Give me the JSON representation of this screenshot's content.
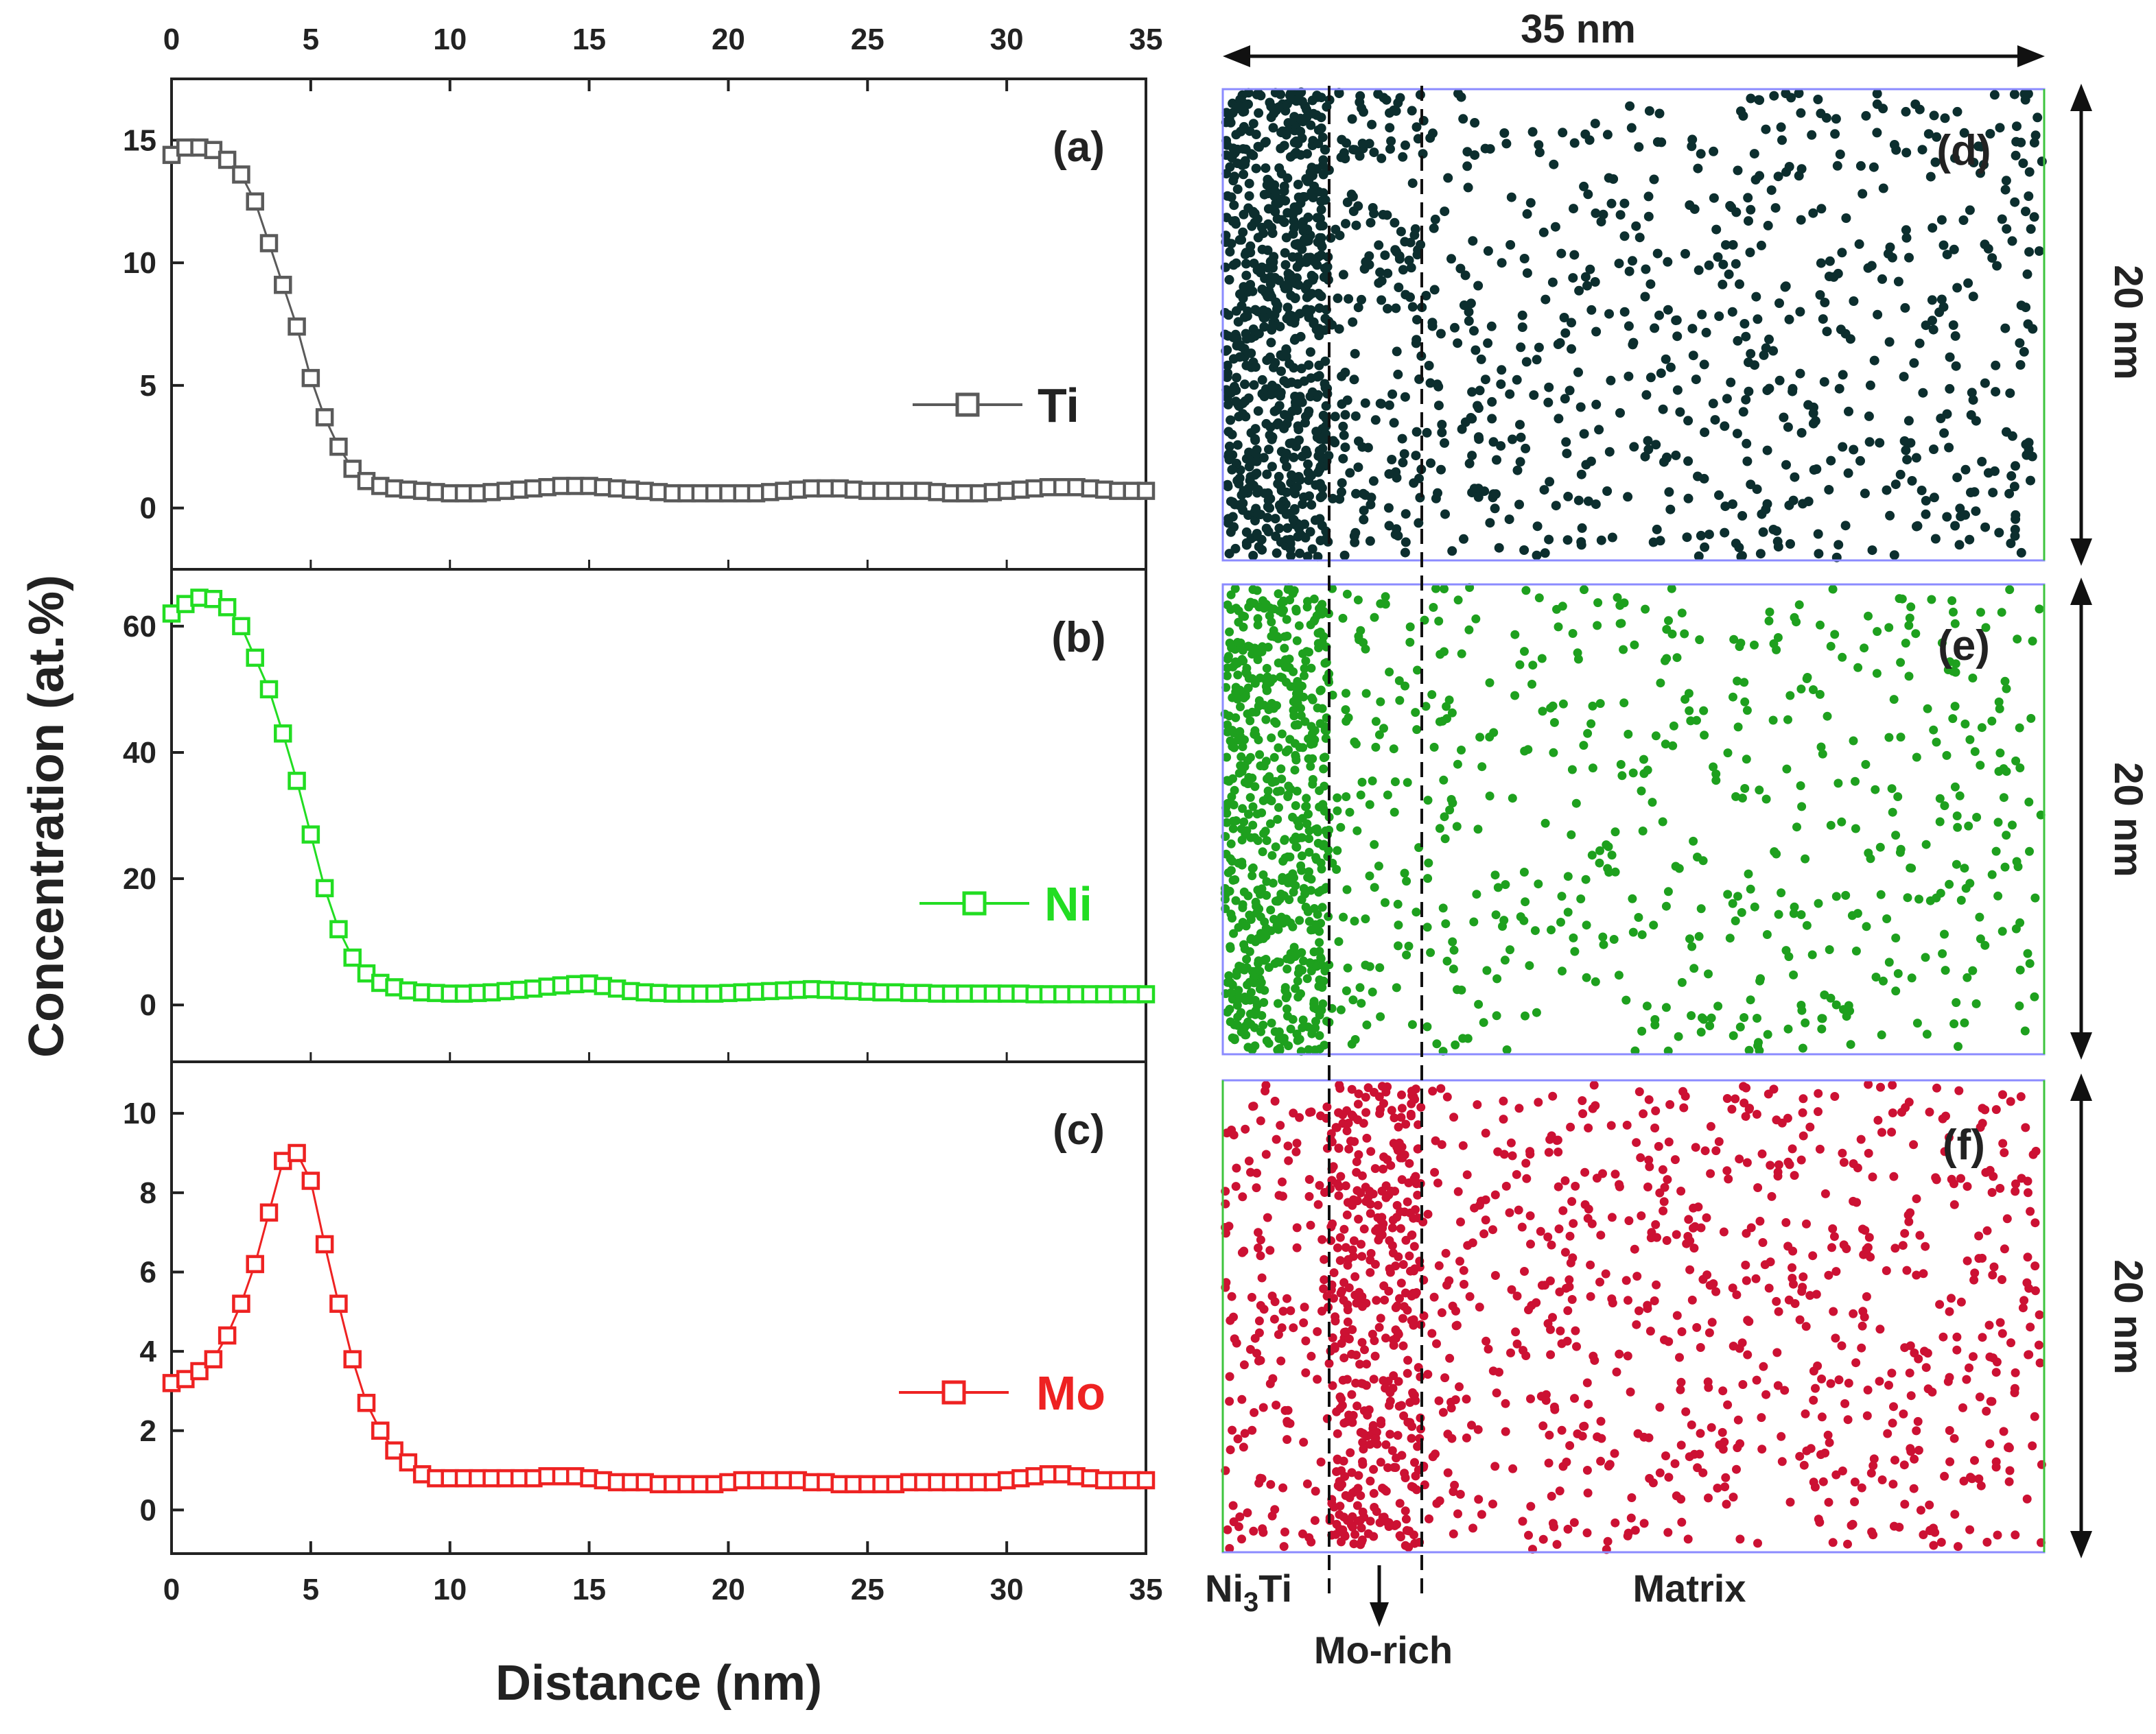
{
  "chart_data": [
    {
      "type": "line",
      "panel": "(a)",
      "series": [
        {
          "name": "Ti",
          "color": "#5a5a5a",
          "x": [
            0.0,
            0.5,
            1.0,
            1.5,
            2.0,
            2.5,
            3.0,
            3.5,
            4.0,
            4.5,
            5.0,
            5.5,
            6.0,
            6.5,
            7.0,
            7.5,
            8.0,
            8.5,
            9.0,
            9.5,
            10.0,
            10.5,
            11.0,
            11.5,
            12.0,
            12.5,
            13.0,
            13.5,
            14.0,
            14.5,
            15.0,
            15.5,
            16.0,
            16.5,
            17.0,
            17.5,
            18.0,
            18.5,
            19.0,
            19.5,
            20.0,
            20.5,
            21.0,
            21.5,
            22.0,
            22.5,
            23.0,
            23.5,
            24.0,
            24.5,
            25.0,
            25.5,
            26.0,
            26.5,
            27.0,
            27.5,
            28.0,
            28.5,
            29.0,
            29.5,
            30.0,
            30.5,
            31.0,
            31.5,
            32.0,
            32.5,
            33.0,
            33.5,
            34.0,
            34.5,
            35.0
          ],
          "values": [
            14.4,
            14.7,
            14.7,
            14.6,
            14.2,
            13.6,
            12.5,
            10.8,
            9.1,
            7.4,
            5.3,
            3.7,
            2.5,
            1.6,
            1.1,
            0.9,
            0.8,
            0.75,
            0.7,
            0.65,
            0.6,
            0.6,
            0.6,
            0.65,
            0.7,
            0.75,
            0.8,
            0.85,
            0.9,
            0.9,
            0.9,
            0.85,
            0.8,
            0.75,
            0.7,
            0.65,
            0.6,
            0.6,
            0.6,
            0.6,
            0.6,
            0.6,
            0.6,
            0.65,
            0.7,
            0.75,
            0.8,
            0.8,
            0.8,
            0.75,
            0.7,
            0.7,
            0.7,
            0.7,
            0.7,
            0.65,
            0.6,
            0.6,
            0.6,
            0.65,
            0.7,
            0.75,
            0.8,
            0.85,
            0.85,
            0.85,
            0.8,
            0.75,
            0.7,
            0.7,
            0.7
          ]
        }
      ],
      "yticks": [
        0,
        5,
        10,
        15
      ],
      "ylim": [
        -2.5,
        17.5
      ],
      "xlim": [
        0,
        35
      ]
    },
    {
      "type": "line",
      "panel": "(b)",
      "series": [
        {
          "name": "Ni",
          "color": "#22dd22",
          "x": [
            0.0,
            0.5,
            1.0,
            1.5,
            2.0,
            2.5,
            3.0,
            3.5,
            4.0,
            4.5,
            5.0,
            5.5,
            6.0,
            6.5,
            7.0,
            7.5,
            8.0,
            8.5,
            9.0,
            9.5,
            10.0,
            10.5,
            11.0,
            11.5,
            12.0,
            12.5,
            13.0,
            13.5,
            14.0,
            14.5,
            15.0,
            15.5,
            16.0,
            16.5,
            17.0,
            17.5,
            18.0,
            18.5,
            19.0,
            19.5,
            20.0,
            20.5,
            21.0,
            21.5,
            22.0,
            22.5,
            23.0,
            23.5,
            24.0,
            24.5,
            25.0,
            25.5,
            26.0,
            26.5,
            27.0,
            27.5,
            28.0,
            28.5,
            29.0,
            29.5,
            30.0,
            30.5,
            31.0,
            31.5,
            32.0,
            32.5,
            33.0,
            33.5,
            34.0,
            34.5,
            35.0
          ],
          "values": [
            62,
            63.5,
            64.5,
            64.3,
            63,
            60,
            55,
            50,
            43,
            35.5,
            27,
            18.5,
            12,
            7.5,
            5,
            3.5,
            2.8,
            2.3,
            2.0,
            1.9,
            1.8,
            1.8,
            1.9,
            2.0,
            2.2,
            2.4,
            2.6,
            2.9,
            3.1,
            3.3,
            3.4,
            3.0,
            2.6,
            2.2,
            2.0,
            1.9,
            1.8,
            1.8,
            1.8,
            1.8,
            1.9,
            2.0,
            2.1,
            2.2,
            2.3,
            2.4,
            2.5,
            2.4,
            2.3,
            2.2,
            2.1,
            2.0,
            2.0,
            1.9,
            1.9,
            1.8,
            1.8,
            1.8,
            1.8,
            1.8,
            1.8,
            1.8,
            1.7,
            1.7,
            1.7,
            1.7,
            1.7,
            1.7,
            1.7,
            1.7,
            1.7
          ]
        }
      ],
      "yticks": [
        0,
        20,
        40,
        60
      ],
      "ylim": [
        -9,
        69
      ],
      "xlim": [
        0,
        35
      ]
    },
    {
      "type": "line",
      "panel": "(c)",
      "series": [
        {
          "name": "Mo",
          "color": "#ee2222",
          "x": [
            0.0,
            0.5,
            1.0,
            1.5,
            2.0,
            2.5,
            3.0,
            3.5,
            4.0,
            4.5,
            5.0,
            5.5,
            6.0,
            6.5,
            7.0,
            7.5,
            8.0,
            8.5,
            9.0,
            9.5,
            10.0,
            10.5,
            11.0,
            11.5,
            12.0,
            12.5,
            13.0,
            13.5,
            14.0,
            14.5,
            15.0,
            15.5,
            16.0,
            16.5,
            17.0,
            17.5,
            18.0,
            18.5,
            19.0,
            19.5,
            20.0,
            20.5,
            21.0,
            21.5,
            22.0,
            22.5,
            23.0,
            23.5,
            24.0,
            24.5,
            25.0,
            25.5,
            26.0,
            26.5,
            27.0,
            27.5,
            28.0,
            28.5,
            29.0,
            29.5,
            30.0,
            30.5,
            31.0,
            31.5,
            32.0,
            32.5,
            33.0,
            33.5,
            34.0,
            34.5,
            35.0
          ],
          "values": [
            3.2,
            3.3,
            3.5,
            3.8,
            4.4,
            5.2,
            6.2,
            7.5,
            8.8,
            9.0,
            8.3,
            6.7,
            5.2,
            3.8,
            2.7,
            2.0,
            1.5,
            1.2,
            0.9,
            0.8,
            0.8,
            0.8,
            0.8,
            0.8,
            0.8,
            0.8,
            0.8,
            0.85,
            0.85,
            0.85,
            0.8,
            0.75,
            0.7,
            0.7,
            0.7,
            0.65,
            0.65,
            0.65,
            0.65,
            0.65,
            0.7,
            0.75,
            0.75,
            0.75,
            0.75,
            0.75,
            0.7,
            0.7,
            0.65,
            0.65,
            0.65,
            0.65,
            0.65,
            0.7,
            0.7,
            0.7,
            0.7,
            0.7,
            0.7,
            0.7,
            0.75,
            0.8,
            0.85,
            0.9,
            0.9,
            0.85,
            0.8,
            0.75,
            0.75,
            0.75,
            0.75
          ]
        }
      ],
      "yticks": [
        0,
        2,
        4,
        6,
        8,
        10
      ],
      "ylim": [
        -1.1,
        11.3
      ],
      "xlim": [
        0,
        35
      ]
    }
  ],
  "axes": {
    "xticks": [
      "0",
      "5",
      "10",
      "15",
      "20",
      "25",
      "30",
      "35"
    ],
    "xlabel": "Distance (nm)",
    "ylabel": "Concentration (at.%)"
  },
  "panels": {
    "a_label": "(a)",
    "b_label": "(b)",
    "c_label": "(c)",
    "d_label": "(d)",
    "e_label": "(e)",
    "f_label": "(f)"
  },
  "legend": {
    "ti": "Ti",
    "ni": "Ni",
    "mo": "Mo"
  },
  "maps": {
    "width_scale": "35 nm",
    "height_scale_d": "20 nm",
    "height_scale_e": "20 nm",
    "height_scale_f": "20 nm",
    "region_ni3ti_base": "Ni",
    "region_ni3ti_sub": "3",
    "region_ni3ti_tail": "Ti",
    "region_morich": "Mo-rich",
    "region_matrix": "Matrix",
    "dot_colors": {
      "ti": "#0c2e2e",
      "ni": "#1ea01e",
      "mo": "#cc1133"
    },
    "box_color": "#8b8bff"
  }
}
